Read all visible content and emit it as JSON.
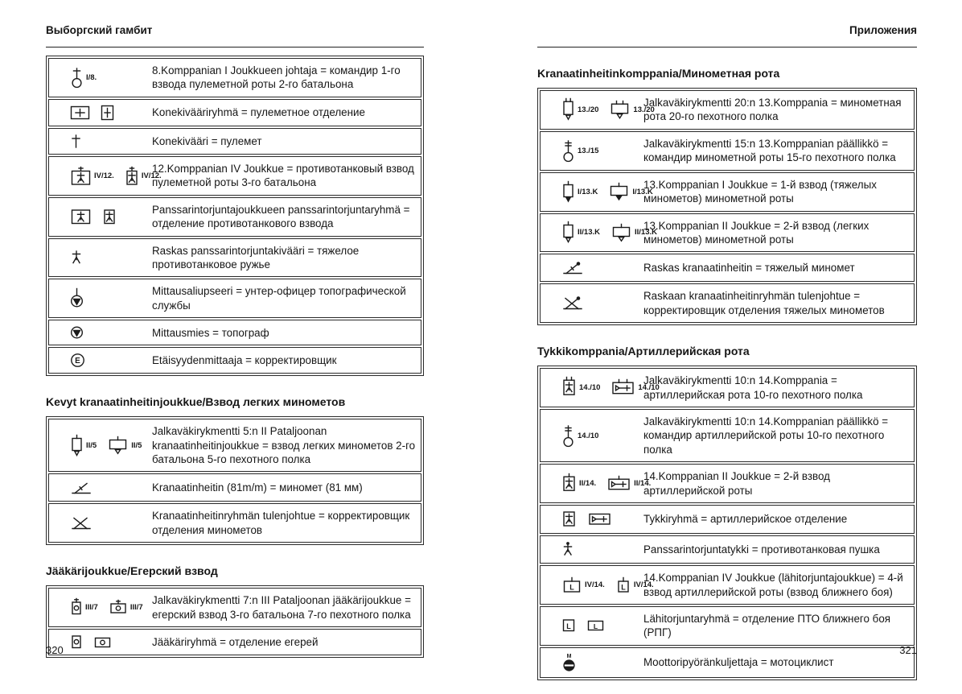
{
  "page_left": {
    "header": "Выборгский гамбит",
    "page_number": "320",
    "sections": [
      {
        "title": null,
        "rows": [
          {
            "symbols": [
              {
                "icon": "platoon-leader-icon",
                "label": "I/8."
              }
            ],
            "text": "8.Komppanian I Joukkueen johtaja = командир 1-го взвода пулеметной роты 2-го батальона"
          },
          {
            "symbols": [
              {
                "icon": "mg-group-wide-icon"
              },
              {
                "icon": "mg-group-tall-icon"
              }
            ],
            "text": "Konekivääriryhmä = пулеметное отделение"
          },
          {
            "symbols": [
              {
                "icon": "mg-icon"
              }
            ],
            "text": "Konekivääri = пулемет"
          },
          {
            "symbols": [
              {
                "icon": "at-platoon-wide-icon",
                "label": "IV/12."
              },
              {
                "icon": "at-platoon-tall-icon",
                "label": "IV/12."
              }
            ],
            "text": "12.Komppanian IV Joukkue = противотанковый взвод пулеметной роты 3-го батальона"
          },
          {
            "symbols": [
              {
                "icon": "at-group-wide-icon"
              },
              {
                "icon": "at-group-tall-icon"
              }
            ],
            "text": "Panssarintorjuntajoukkueen panssarintorjuntaryhmä = отделение противотанкового взвода"
          },
          {
            "symbols": [
              {
                "icon": "at-rifle-icon"
              }
            ],
            "text": "Raskas panssarintorjuntakivääri = тяжелое противотанковое ружье"
          },
          {
            "symbols": [
              {
                "icon": "surveyor-nco-icon"
              }
            ],
            "text": "Mittausaliupseeri = унтер-офицер топографической службы"
          },
          {
            "symbols": [
              {
                "icon": "surveyor-icon"
              }
            ],
            "text": "Mittausmies = топограф"
          },
          {
            "symbols": [
              {
                "icon": "rangefinder-icon"
              }
            ],
            "text": "Etäisyydenmittaaja = корректировщик"
          }
        ]
      },
      {
        "title": "Kevyt kranaatinheitinjoukkue/Взвод легких минометов",
        "rows": [
          {
            "symbols": [
              {
                "icon": "mortar-platoon-tall-icon",
                "label": "II/5"
              },
              {
                "icon": "mortar-platoon-wide-icon",
                "label": "II/5"
              }
            ],
            "text": "Jalkaväkirykmentti 5:n II Pataljoonan kranaatinheitinjoukkue = взвод легких минометов 2-го батальона 5-го пехотного полка"
          },
          {
            "symbols": [
              {
                "icon": "mortar-light-icon"
              }
            ],
            "text": "Kranaatinheitin (81m/m) = миномет (81 мм)"
          },
          {
            "symbols": [
              {
                "icon": "mortar-observer-light-icon"
              }
            ],
            "text": "Kranaatinheitinryhmän tulenjohtue = корректировщик отделения минометов"
          }
        ]
      },
      {
        "title": "Jääkärijoukkue/Егерский взвод",
        "rows": [
          {
            "symbols": [
              {
                "icon": "jaeger-platoon-tall-icon",
                "label": "III/7"
              },
              {
                "icon": "jaeger-platoon-wide-icon",
                "label": "III/7"
              }
            ],
            "text": "Jalkaväkirykmentti 7:n III Pataljoonan jääkärijoukkue = егерский взвод 3-го батальона 7-го пехотного полка"
          },
          {
            "symbols": [
              {
                "icon": "jaeger-group-tall-icon"
              },
              {
                "icon": "jaeger-group-wide-icon"
              }
            ],
            "text": "Jääkäriryhmä = отделение егерей"
          }
        ]
      }
    ]
  },
  "page_right": {
    "header": "Приложения",
    "page_number": "321",
    "sections": [
      {
        "title": "Kranaatinheitinkomppania/Минометная рота",
        "rows": [
          {
            "symbols": [
              {
                "icon": "mortar-company-tall-icon",
                "label": "13./20"
              },
              {
                "icon": "mortar-company-wide-icon",
                "label": "13./20"
              }
            ],
            "text": "Jalkaväkirykmentti 20:n 13.Komppania = минометная рота 20-го пехотного полка"
          },
          {
            "symbols": [
              {
                "icon": "company-leader-icon",
                "label": "13./15"
              }
            ],
            "text": "Jalkaväkirykmentti 15:n 13.Komppanian päällikkö = командир минометной роты 15-го пехотного полка"
          },
          {
            "symbols": [
              {
                "icon": "mortar-heavy-platoon-tall-icon",
                "label": "I/13.K"
              },
              {
                "icon": "mortar-heavy-platoon-wide-icon",
                "label": "I/13.K"
              }
            ],
            "text": "13.Komppanian I Joukkue = 1-й взвод (тяжелых минометов) минометной роты"
          },
          {
            "symbols": [
              {
                "icon": "mortar-platoon-tall-icon",
                "label": "II/13.K"
              },
              {
                "icon": "mortar-platoon-wide-icon",
                "label": "II/13.K"
              }
            ],
            "text": "13.Komppanian II Joukkue = 2-й взвод (легких минометов) минометной роты"
          },
          {
            "symbols": [
              {
                "icon": "mortar-heavy-icon"
              }
            ],
            "text": "Raskas kranaatinheitin = тяжелый миномет"
          },
          {
            "symbols": [
              {
                "icon": "mortar-observer-heavy-icon"
              }
            ],
            "text": "Raskaan kranaatinheitinryhmän tulenjohtue = корректировщик отделения тяжелых минометов"
          }
        ]
      },
      {
        "title": "Tykkikomppania/Артиллерийская рота",
        "rows": [
          {
            "symbols": [
              {
                "icon": "gun-company-tall-icon",
                "label": "14./10"
              },
              {
                "icon": "gun-company-wide-icon",
                "label": "14./10"
              }
            ],
            "text": "Jalkaväkirykmentti 10:n 14.Komppania = артиллерийская рота 10-го пехотного полка"
          },
          {
            "symbols": [
              {
                "icon": "company-leader-icon",
                "label": "14./10"
              }
            ],
            "text": "Jalkaväkirykmentti 10:n 14.Komppanian päällikkö = командир артиллерийской роты 10-го пехотного полка"
          },
          {
            "symbols": [
              {
                "icon": "gun-platoon-tall-icon",
                "label": "II/14."
              },
              {
                "icon": "gun-platoon-wide-icon",
                "label": "II/14."
              }
            ],
            "text": "14.Komppanian II Joukkue = 2-й взвод артиллерийской роты"
          },
          {
            "symbols": [
              {
                "icon": "gun-group-tall-icon"
              },
              {
                "icon": "gun-group-wide-icon"
              }
            ],
            "text": "Tykkiryhmä = артиллерийское отделение"
          },
          {
            "symbols": [
              {
                "icon": "at-gun-icon"
              }
            ],
            "text": "Panssarintorjuntatykki = противотанковая пушка"
          },
          {
            "symbols": [
              {
                "icon": "close-defence-platoon-wide-icon",
                "label": "IV/14."
              },
              {
                "icon": "close-defence-platoon-square-icon",
                "label": "IV/14."
              }
            ],
            "text": "14.Komppanian IV Joukkue (lähitorjuntajoukkue) = 4-й взвод артиллерийской роты (взвод ближнего боя)"
          },
          {
            "symbols": [
              {
                "icon": "close-defence-group-square-icon"
              },
              {
                "icon": "close-defence-group-wide-icon"
              }
            ],
            "text": "Lähitorjuntaryhmä = отделение ПТО ближнего боя (РПГ)"
          },
          {
            "symbols": [
              {
                "icon": "motorcyclist-icon"
              }
            ],
            "text": "Moottoripyöränkuljettaja = мотоциклист"
          }
        ]
      }
    ]
  }
}
